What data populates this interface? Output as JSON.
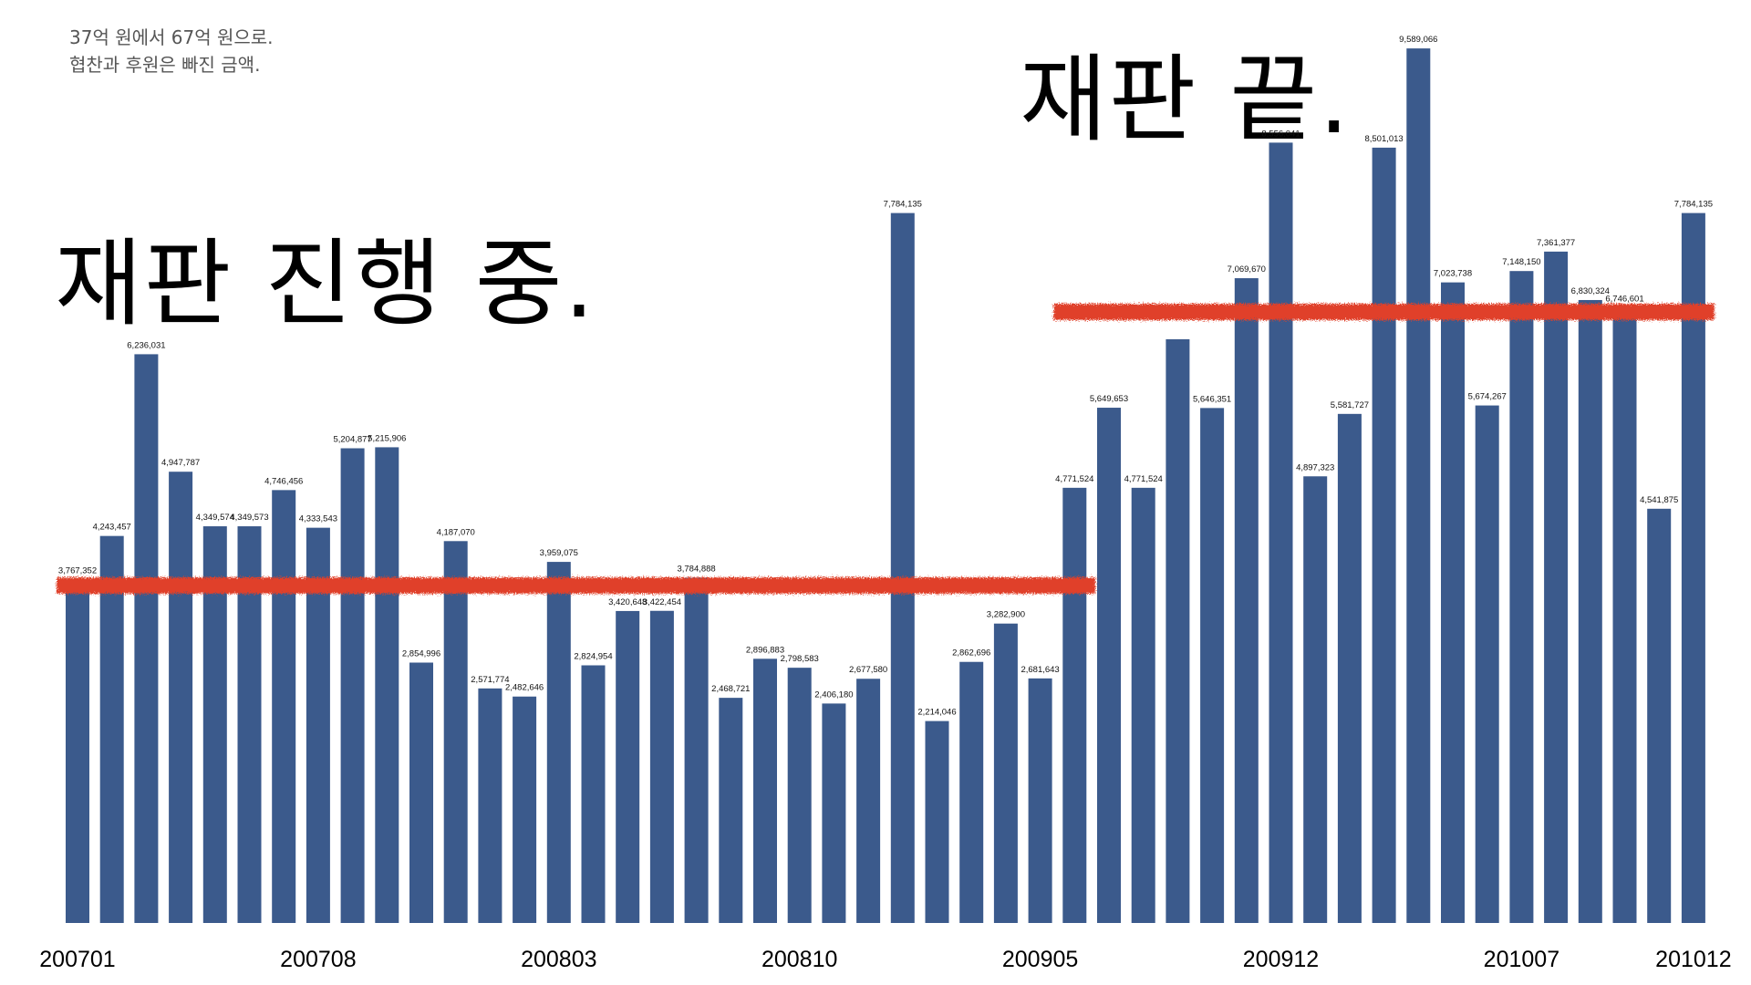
{
  "caption": {
    "line1": "37억 원에서 67억 원으로.",
    "line2": "협찬과 후원은 빠진 금액."
  },
  "headline_during": "재판 진행 중.",
  "headline_end": "재판 끝.",
  "colors": {
    "bar": "#3b5a8c",
    "average_line": "#e0402c",
    "label": "#111111"
  },
  "chart_data": {
    "type": "bar",
    "x_tick_labels": [
      "200701",
      "200708",
      "200803",
      "200810",
      "200905",
      "200912",
      "201007",
      "201012"
    ],
    "values": [
      3767352,
      4243457,
      6236031,
      4947787,
      4349574,
      4349573,
      4746456,
      4333543,
      5204877,
      5215906,
      2854996,
      4187070,
      2571774,
      2482646,
      3959075,
      2824954,
      3420648,
      3422454,
      3784888,
      2468721,
      2896883,
      2798583,
      2406180,
      2677580,
      7784135,
      2214046,
      2862696,
      3282900,
      2681643,
      4771524,
      5649653,
      4771524,
      6400000,
      5646351,
      7069670,
      8556041,
      4897323,
      5581727,
      8501013,
      9589066,
      7023738,
      5674267,
      7148150,
      7361377,
      6830324,
      6746601,
      4541875,
      7784135
    ],
    "data_labels": [
      "3,767,352",
      "4,243,457",
      "6,236,031",
      "4,947,787",
      "4,349,574",
      "4,349,573",
      "4,746,456",
      "4,333,543",
      "5,204,877",
      "5,215,906",
      "2,854,996",
      "4,187,070",
      "2,571,774",
      "2,482,646",
      "3,959,075",
      "2,824,954",
      "3,420,648",
      "3,422,454",
      "3,784,888",
      "2,468,721",
      "2,896,883",
      "2,798,583",
      "2,406,180",
      "2,677,580",
      "7,784,135",
      "2,214,046",
      "2,862,696",
      "3,282,900",
      "2,681,643",
      "4,771,524",
      "5,649,653",
      "4,771,524",
      "",
      "5,646,351",
      "7,069,670",
      "8,556,041",
      "4,897,323",
      "5,581,727",
      "8,501,013",
      "9,589,066",
      "7,023,738",
      "5,674,267",
      "7,148,150",
      "7,361,377",
      "6,830,324",
      "6,746,601",
      "4,541,875",
      "7,784,135"
    ],
    "ylim": [
      0,
      10000000
    ],
    "average_lines": [
      {
        "from_index": 0,
        "to_index": 29,
        "value": 3700000
      },
      {
        "from_index": 29,
        "to_index": 47,
        "value": 6700000
      }
    ],
    "grid": false,
    "legend": "none"
  }
}
